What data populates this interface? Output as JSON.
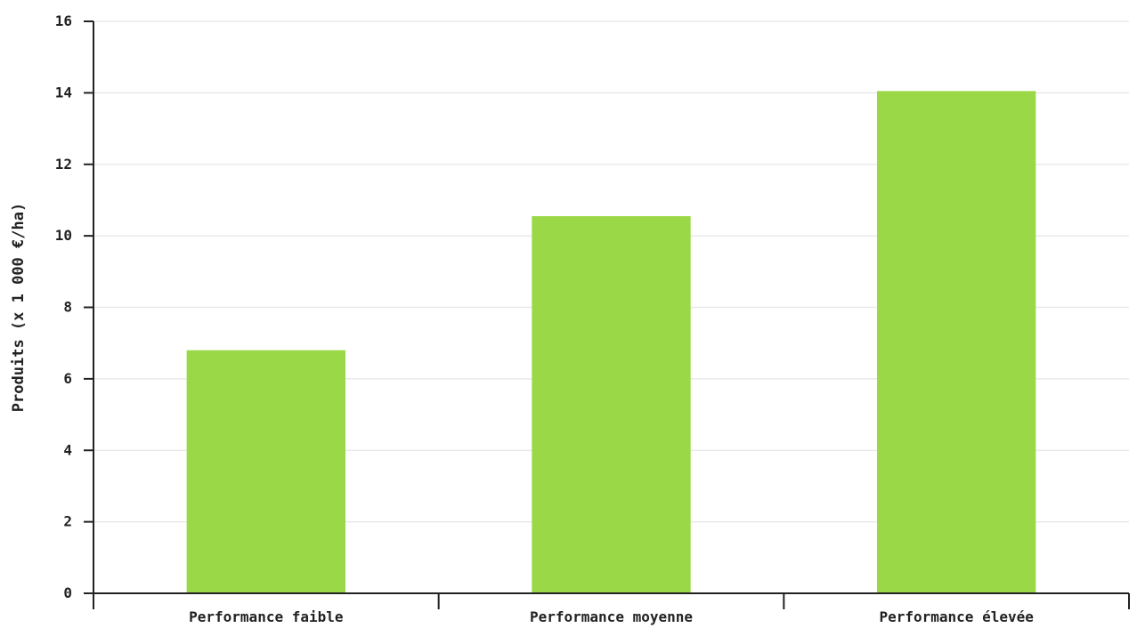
{
  "chart_data": {
    "type": "bar",
    "title": "",
    "xlabel": "",
    "ylabel": "Produits (x 1 000 €/ha)",
    "categories": [
      "Performance faible",
      "Performance moyenne",
      "Performance élevée"
    ],
    "values": [
      6.8,
      10.55,
      14.05
    ],
    "ylim": [
      0,
      16
    ],
    "yticks": [
      0,
      2,
      4,
      6,
      8,
      10,
      12,
      14,
      16
    ],
    "grid": true,
    "legend": "none",
    "colors": {
      "bar": "#9ad847",
      "grid": "#e6e6e6",
      "axis": "#222222"
    }
  }
}
